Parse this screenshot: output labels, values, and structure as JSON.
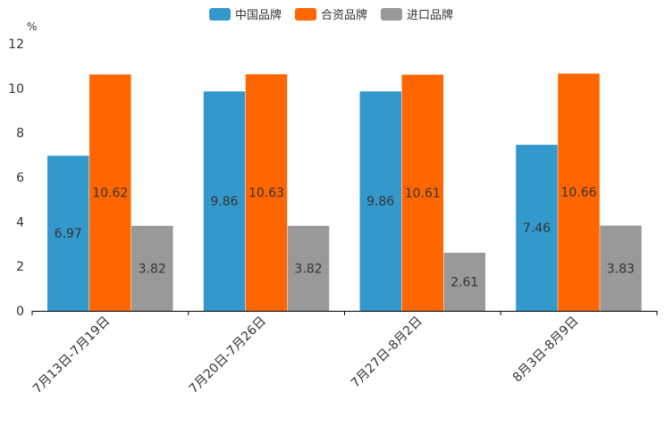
{
  "chart_data": {
    "type": "bar",
    "categories": [
      "7月13日-7月19日",
      "7月20日-7月26日",
      "7月27日-8月2日",
      "8月3日-8月9日"
    ],
    "series": [
      {
        "name": "中国品牌",
        "color": "#3399cc",
        "values": [
          6.97,
          9.86,
          9.86,
          7.46
        ]
      },
      {
        "name": "合资品牌",
        "color": "#ff6600",
        "values": [
          10.62,
          10.63,
          10.61,
          10.66
        ]
      },
      {
        "name": "进口品牌",
        "color": "#999999",
        "values": [
          3.82,
          3.82,
          2.61,
          3.83
        ]
      }
    ],
    "ylabel": "%",
    "ylim": [
      0,
      12
    ],
    "yticks": [
      "0",
      "2",
      "4",
      "6",
      "8",
      "10",
      "12"
    ],
    "grid": false,
    "legend_position": "top-center"
  }
}
